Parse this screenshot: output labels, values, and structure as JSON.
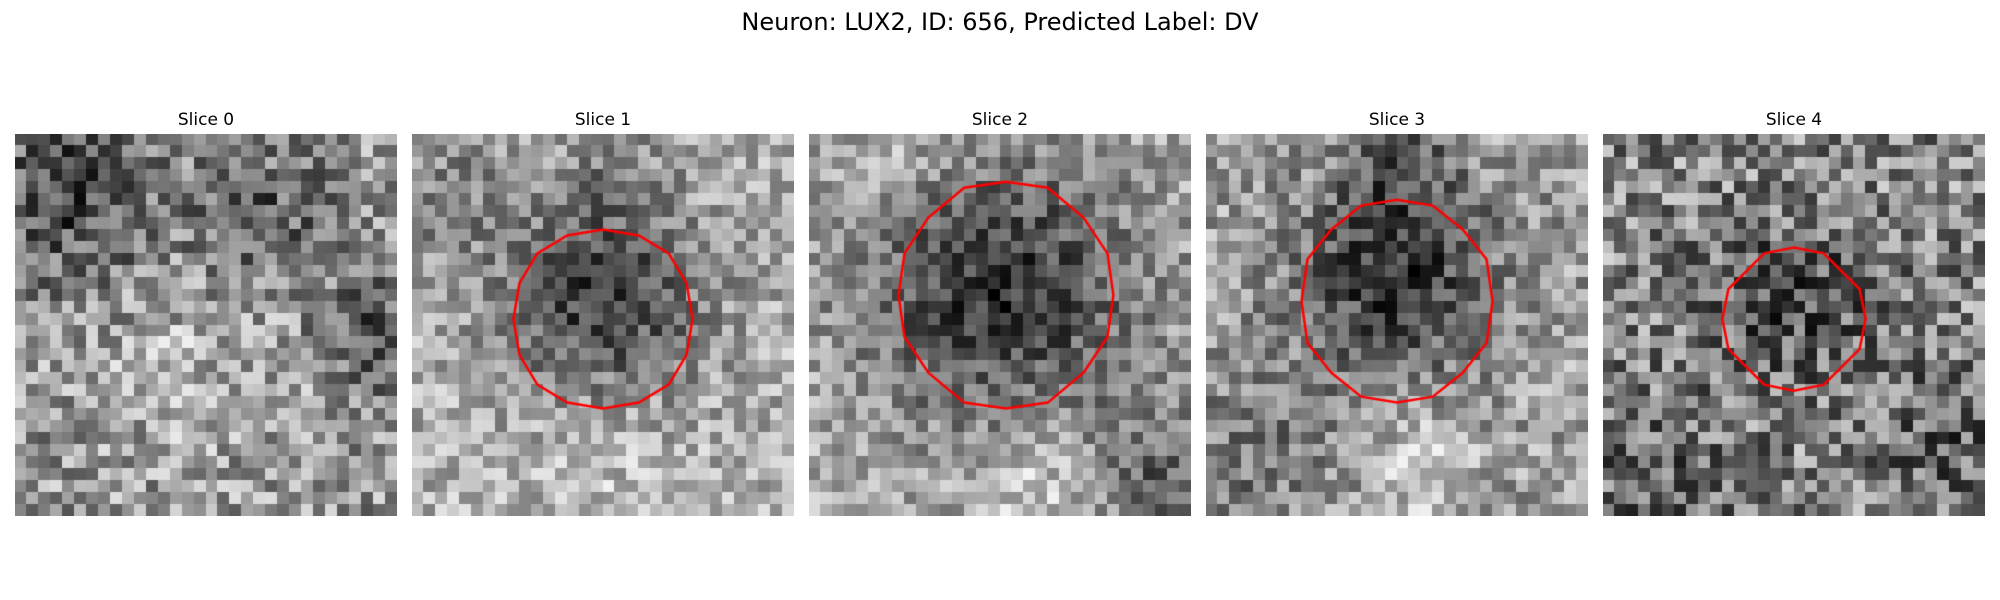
{
  "figure": {
    "title": "Neuron: LUX2, ID: 656, Predicted Label: DV"
  },
  "slices": [
    {
      "title": "Slice 0",
      "has_outline": false
    },
    {
      "title": "Slice 1",
      "has_outline": true
    },
    {
      "title": "Slice 2",
      "has_outline": true
    },
    {
      "title": "Slice 3",
      "has_outline": true
    },
    {
      "title": "Slice 4",
      "has_outline": true
    }
  ],
  "colors": {
    "outline": "#ff0000",
    "background": "#ffffff"
  }
}
